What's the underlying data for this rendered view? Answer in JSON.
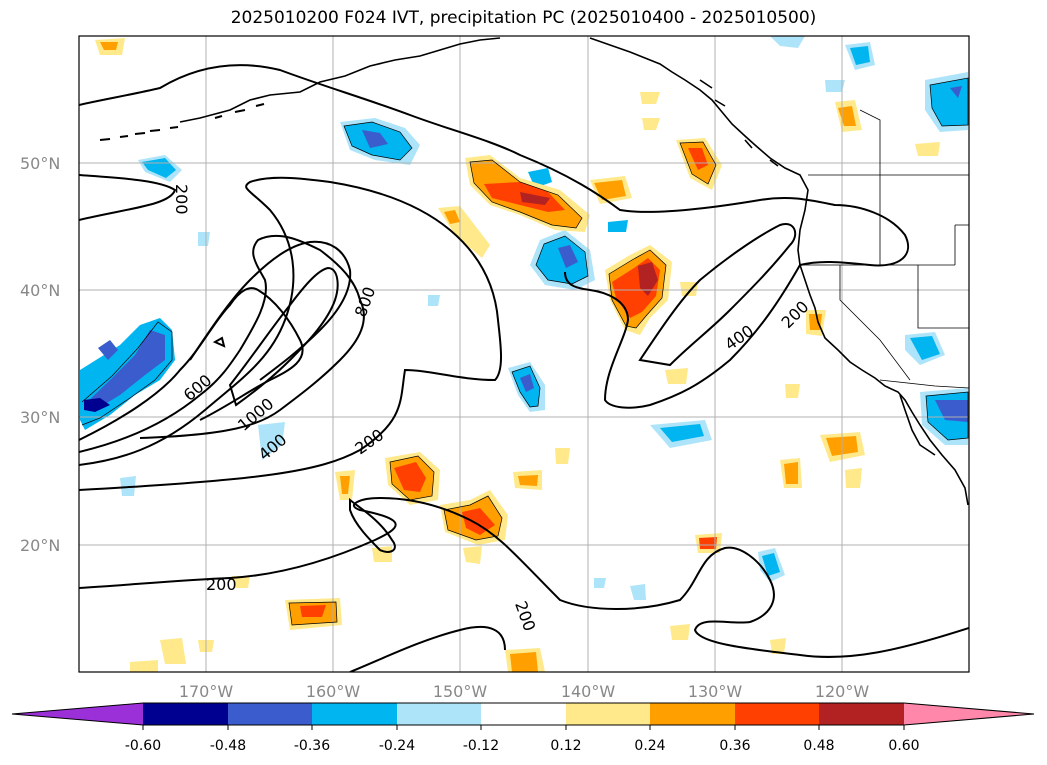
{
  "title": "2025010200 F024 IVT, precipitation PC (2025010400 - 2025010500)",
  "map": {
    "lat_range": [
      10,
      60
    ],
    "lon_range": [
      -180,
      -110
    ],
    "grid": true,
    "lat_labels": [
      "20°N",
      "30°N",
      "40°N",
      "50°N"
    ],
    "lon_labels": [
      "170°W",
      "160°W",
      "150°W",
      "140°W",
      "130°W",
      "120°W"
    ],
    "ivt_contour_levels": [
      200,
      400,
      600,
      800,
      1000
    ],
    "contour_labels": [
      "200",
      "200",
      "200",
      "200",
      "200",
      "400",
      "400",
      "600",
      "800",
      "1000"
    ]
  },
  "colorbar": {
    "extend": "both",
    "ticks": [
      "-0.60",
      "-0.48",
      "-0.36",
      "-0.24",
      "-0.12",
      "0.12",
      "0.24",
      "0.36",
      "0.48",
      "0.60"
    ],
    "colors": {
      "below": "#9b30d9",
      "neg_060_048": "#000090",
      "neg_048_036": "#3a5ccc",
      "neg_036_024": "#00b5f0",
      "neg_024_012": "#ade4fa",
      "neutral": "#ffffff",
      "pos_012_024": "#ffe98a",
      "pos_024_036": "#ffa000",
      "pos_036_048": "#ff4000",
      "pos_048_060": "#b22222",
      "above": "#ff88aa"
    }
  }
}
